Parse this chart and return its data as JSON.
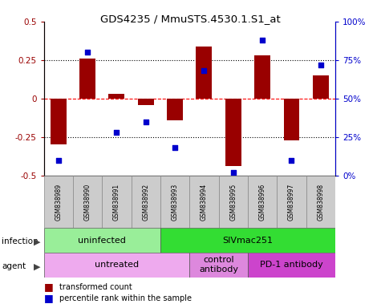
{
  "title": "GDS4235 / MmuSTS.4530.1.S1_at",
  "samples": [
    "GSM838989",
    "GSM838990",
    "GSM838991",
    "GSM838992",
    "GSM838993",
    "GSM838994",
    "GSM838995",
    "GSM838996",
    "GSM838997",
    "GSM838998"
  ],
  "bar_values": [
    -0.3,
    0.26,
    0.03,
    -0.04,
    -0.14,
    0.34,
    -0.44,
    0.28,
    -0.27,
    0.15
  ],
  "scatter_percentiles": [
    10,
    80,
    28,
    35,
    18,
    68,
    2,
    88,
    10,
    72
  ],
  "bar_color": "#990000",
  "scatter_color": "#0000cc",
  "ylim_left": [
    -0.5,
    0.5
  ],
  "ylim_right": [
    0,
    100
  ],
  "infection_groups": [
    {
      "label": "uninfected",
      "start": 0,
      "end": 4,
      "color": "#aaeea a"
    },
    {
      "label": "SIVmac251",
      "start": 4,
      "end": 10,
      "color": "#33dd33"
    }
  ],
  "agent_groups": [
    {
      "label": "untreated",
      "start": 0,
      "end": 5,
      "color": "#eeaaee"
    },
    {
      "label": "control\nantibody",
      "start": 5,
      "end": 7,
      "color": "#dd88dd"
    },
    {
      "label": "PD-1 antibody",
      "start": 7,
      "end": 10,
      "color": "#cc44cc"
    }
  ],
  "background_color": "#ffffff",
  "sample_box_color": "#cccccc",
  "infection_colors": [
    "#aaeea a",
    "#33dd33"
  ],
  "agent_colors": [
    "#eeaaee",
    "#dd88dd",
    "#cc44cc"
  ]
}
